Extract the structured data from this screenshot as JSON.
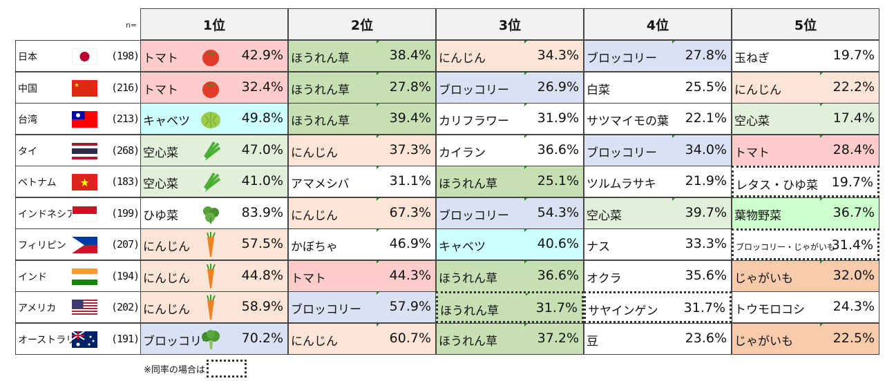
{
  "header": {
    "n_label": "n=",
    "ranks": [
      "1位",
      "2位",
      "3位",
      "4位",
      "5位"
    ]
  },
  "colors": {
    "tomato": "#ffcccc",
    "spinach": "#c6e0b4",
    "carrot": "#fce4d6",
    "broccoli": "#d9e1f2",
    "cabbage": "#ccffff",
    "kangkong": "#e2efda",
    "potato": "#f8cbad",
    "leafy": "#ccffcc",
    "none": "#ffffff"
  },
  "rows": [
    {
      "country": "日本",
      "flag": "jp",
      "n": "(198)",
      "items": [
        {
          "name": "トマト",
          "pct": "42.9%",
          "color": "tomato",
          "icon": "tomato"
        },
        {
          "name": "ほうれん草",
          "pct": "38.4%",
          "color": "spinach"
        },
        {
          "name": "にんじん",
          "pct": "34.3%",
          "color": "carrot"
        },
        {
          "name": "ブロッコリー",
          "pct": "27.8%",
          "color": "broccoli"
        },
        {
          "name": "玉ねぎ",
          "pct": "19.7%",
          "color": "none"
        }
      ]
    },
    {
      "country": "中国",
      "flag": "cn",
      "n": "(216)",
      "items": [
        {
          "name": "トマト",
          "pct": "32.4%",
          "color": "tomato",
          "icon": "tomato"
        },
        {
          "name": "ほうれん草",
          "pct": "27.8%",
          "color": "spinach"
        },
        {
          "name": "ブロッコリー",
          "pct": "26.9%",
          "color": "broccoli"
        },
        {
          "name": "白菜",
          "pct": "25.5%",
          "color": "none"
        },
        {
          "name": "にんじん",
          "pct": "22.2%",
          "color": "carrot"
        }
      ]
    },
    {
      "country": "台湾",
      "flag": "tw",
      "n": "(213)",
      "items": [
        {
          "name": "キャベツ",
          "pct": "49.8%",
          "color": "cabbage",
          "icon": "cabbage"
        },
        {
          "name": "ほうれん草",
          "pct": "39.4%",
          "color": "spinach"
        },
        {
          "name": "カリフラワー",
          "pct": "31.9%",
          "color": "none"
        },
        {
          "name": "サツマイモの葉",
          "pct": "22.1%",
          "color": "none"
        },
        {
          "name": "空心菜",
          "pct": "17.4%",
          "color": "kangkong"
        }
      ]
    },
    {
      "country": "タイ",
      "flag": "th",
      "n": "(268)",
      "items": [
        {
          "name": "空心菜",
          "pct": "47.0%",
          "color": "kangkong",
          "icon": "kangkong"
        },
        {
          "name": "にんじん",
          "pct": "37.3%",
          "color": "carrot"
        },
        {
          "name": "カイラン",
          "pct": "36.6%",
          "color": "none"
        },
        {
          "name": "ブロッコリー",
          "pct": "34.0%",
          "color": "broccoli"
        },
        {
          "name": "トマト",
          "pct": "28.4%",
          "color": "tomato"
        }
      ]
    },
    {
      "country": "ベトナム",
      "flag": "vn",
      "n": "(183)",
      "items": [
        {
          "name": "空心菜",
          "pct": "41.0%",
          "color": "kangkong",
          "icon": "kangkong"
        },
        {
          "name": "アマメシバ",
          "pct": "31.1%",
          "color": "none"
        },
        {
          "name": "ほうれん草",
          "pct": "25.1%",
          "color": "spinach"
        },
        {
          "name": "ツルムラサキ",
          "pct": "21.9%",
          "color": "none"
        },
        {
          "name": "レタス・ひゆ菜",
          "pct": "19.7%",
          "color": "none",
          "tie": true
        }
      ]
    },
    {
      "country": "インドネシア",
      "flag": "id",
      "n": "(199)",
      "items": [
        {
          "name": "ひゆ菜",
          "pct": "83.9%",
          "color": "none",
          "icon": "amaranth"
        },
        {
          "name": "にんじん",
          "pct": "67.3%",
          "color": "carrot"
        },
        {
          "name": "ブロッコリー",
          "pct": "54.3%",
          "color": "broccoli"
        },
        {
          "name": "空心菜",
          "pct": "39.7%",
          "color": "kangkong"
        },
        {
          "name": "葉物野菜",
          "pct": "36.7%",
          "color": "leafy"
        }
      ]
    },
    {
      "country": "フィリピン",
      "flag": "ph",
      "n": "(207)",
      "items": [
        {
          "name": "にんじん",
          "pct": "57.5%",
          "color": "carrot",
          "icon": "carrot"
        },
        {
          "name": "かぼちゃ",
          "pct": "46.9%",
          "color": "none"
        },
        {
          "name": "キャベツ",
          "pct": "40.6%",
          "color": "cabbage"
        },
        {
          "name": "ナス",
          "pct": "33.3%",
          "color": "none"
        },
        {
          "name": "ブロッコリー・じゃがいも",
          "pct": "31.4%",
          "color": "none",
          "tie": true,
          "small": true
        }
      ]
    },
    {
      "country": "インド",
      "flag": "in",
      "n": "(194)",
      "items": [
        {
          "name": "にんじん",
          "pct": "44.8%",
          "color": "carrot",
          "icon": "carrot"
        },
        {
          "name": "トマト",
          "pct": "44.3%",
          "color": "tomato"
        },
        {
          "name": "ほうれん草",
          "pct": "36.6%",
          "color": "spinach"
        },
        {
          "name": "オクラ",
          "pct": "35.6%",
          "color": "none"
        },
        {
          "name": "じゃがいも",
          "pct": "32.0%",
          "color": "potato"
        }
      ]
    },
    {
      "country": "アメリカ",
      "flag": "us",
      "n": "(202)",
      "items": [
        {
          "name": "にんじん",
          "pct": "58.9%",
          "color": "carrot",
          "icon": "carrot"
        },
        {
          "name": "ブロッコリー",
          "pct": "57.9%",
          "color": "broccoli"
        },
        {
          "name": "ほうれん草",
          "pct": "31.7%",
          "color": "spinach",
          "tie": true
        },
        {
          "name": "サヤインゲン",
          "pct": "31.7%",
          "color": "none",
          "tie": true
        },
        {
          "name": "トウモロコシ",
          "pct": "24.3%",
          "color": "none"
        }
      ]
    },
    {
      "country": "オーストラリア",
      "flag": "au",
      "n": "(191)",
      "items": [
        {
          "name": "ブロッコリー",
          "pct": "70.2%",
          "color": "broccoli",
          "icon": "broccoli"
        },
        {
          "name": "にんじん",
          "pct": "60.7%",
          "color": "carrot"
        },
        {
          "name": "ほうれん草",
          "pct": "37.2%",
          "color": "spinach"
        },
        {
          "name": "豆",
          "pct": "23.6%",
          "color": "none"
        },
        {
          "name": "じゃがいも",
          "pct": "22.5%",
          "color": "potato"
        }
      ]
    }
  ],
  "footnote": "※同率の場合は"
}
